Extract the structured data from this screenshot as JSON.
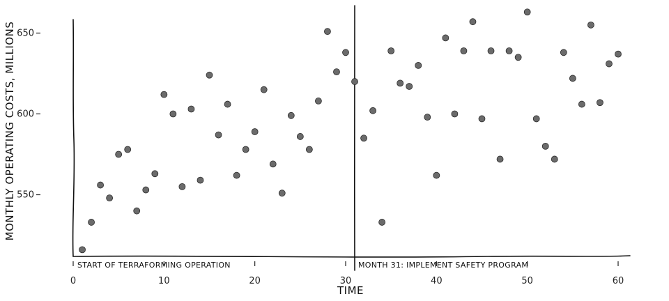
{
  "chart_data": {
    "type": "scatter",
    "xlabel": "TIME",
    "ylabel": "MONTHLY OPERATING COSTS, MILLIONS",
    "xlim": [
      0,
      61
    ],
    "ylim": [
      511,
      667
    ],
    "x_ticks": [
      0,
      10,
      20,
      30,
      40,
      50,
      60
    ],
    "y_ticks": [
      550,
      600,
      650
    ],
    "grid": false,
    "point_color": "#6b6b6b",
    "series": [
      {
        "points": [
          [
            1,
            516
          ],
          [
            2,
            533
          ],
          [
            3,
            556
          ],
          [
            4,
            548
          ],
          [
            5,
            575
          ],
          [
            6,
            578
          ],
          [
            7,
            540
          ],
          [
            8,
            553
          ],
          [
            9,
            563
          ],
          [
            10,
            612
          ],
          [
            11,
            600
          ],
          [
            12,
            555
          ],
          [
            13,
            603
          ],
          [
            14,
            559
          ],
          [
            15,
            624
          ],
          [
            16,
            587
          ],
          [
            17,
            606
          ],
          [
            18,
            562
          ],
          [
            19,
            578
          ],
          [
            20,
            589
          ],
          [
            21,
            615
          ],
          [
            22,
            569
          ],
          [
            23,
            551
          ],
          [
            24,
            599
          ],
          [
            25,
            586
          ],
          [
            26,
            578
          ],
          [
            27,
            608
          ],
          [
            28,
            651
          ],
          [
            29,
            626
          ],
          [
            30,
            638
          ],
          [
            31,
            620
          ],
          [
            32,
            585
          ],
          [
            33,
            602
          ],
          [
            34,
            533
          ],
          [
            35,
            639
          ],
          [
            36,
            619
          ],
          [
            37,
            617
          ],
          [
            38,
            630
          ],
          [
            39,
            598
          ],
          [
            40,
            562
          ],
          [
            41,
            647
          ],
          [
            42,
            600
          ],
          [
            43,
            639
          ],
          [
            44,
            657
          ],
          [
            45,
            597
          ],
          [
            46,
            639
          ],
          [
            47,
            572
          ],
          [
            48,
            639
          ],
          [
            49,
            635
          ],
          [
            50,
            663
          ],
          [
            51,
            597
          ],
          [
            52,
            580
          ],
          [
            53,
            572
          ],
          [
            54,
            638
          ],
          [
            55,
            622
          ],
          [
            56,
            606
          ],
          [
            57,
            655
          ],
          [
            58,
            607
          ],
          [
            59,
            631
          ],
          [
            60,
            637
          ]
        ]
      }
    ],
    "annotations": [
      {
        "x": 0,
        "text": "START OF TERRAFORMING OPERATION"
      },
      {
        "x": 31,
        "text": "MONTH 31: IMPLEMENT SAFETY PROGRAM"
      }
    ],
    "vertical_marker_x": 31
  }
}
